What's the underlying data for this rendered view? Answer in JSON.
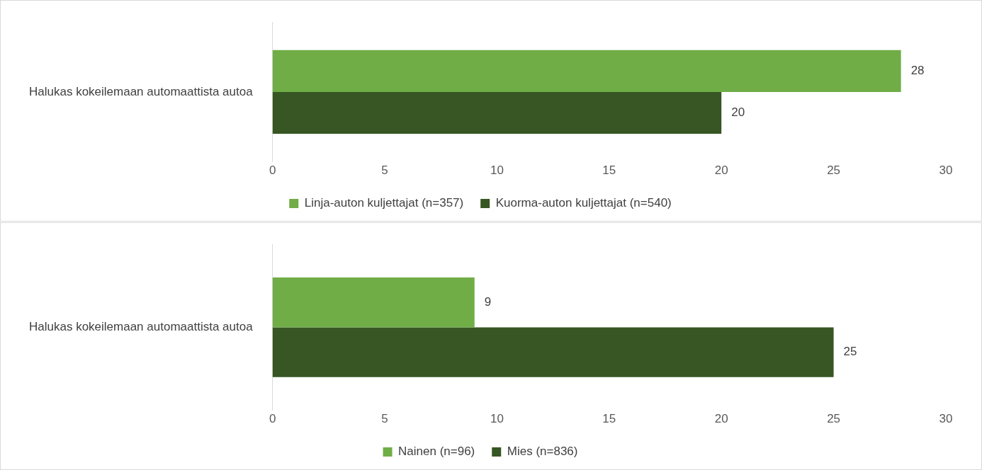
{
  "chart_data": [
    {
      "type": "bar",
      "orientation": "horizontal",
      "categories": [
        "Halukas kokeilemaan automaattista autoa"
      ],
      "series": [
        {
          "name": "Linja-auton kuljettajat (n=357)",
          "color": "#70ad47",
          "values": [
            28
          ]
        },
        {
          "name": "Kuorma-auton kuljettajat (n=540)",
          "color": "#375623",
          "values": [
            20
          ]
        }
      ],
      "xlim": [
        0,
        30
      ],
      "xticks": [
        0,
        5,
        10,
        15,
        20,
        25,
        30
      ],
      "grid": false,
      "legend": "bottom",
      "data_labels": true
    },
    {
      "type": "bar",
      "orientation": "horizontal",
      "categories": [
        "Halukas kokeilemaan automaattista autoa"
      ],
      "series": [
        {
          "name": "Nainen (n=96)",
          "color": "#70ad47",
          "values": [
            9
          ]
        },
        {
          "name": "Mies (n=836)",
          "color": "#375623",
          "values": [
            25
          ]
        }
      ],
      "xlim": [
        0,
        30
      ],
      "xticks": [
        0,
        5,
        10,
        15,
        20,
        25,
        30
      ],
      "grid": false,
      "legend": "bottom",
      "data_labels": true
    }
  ]
}
